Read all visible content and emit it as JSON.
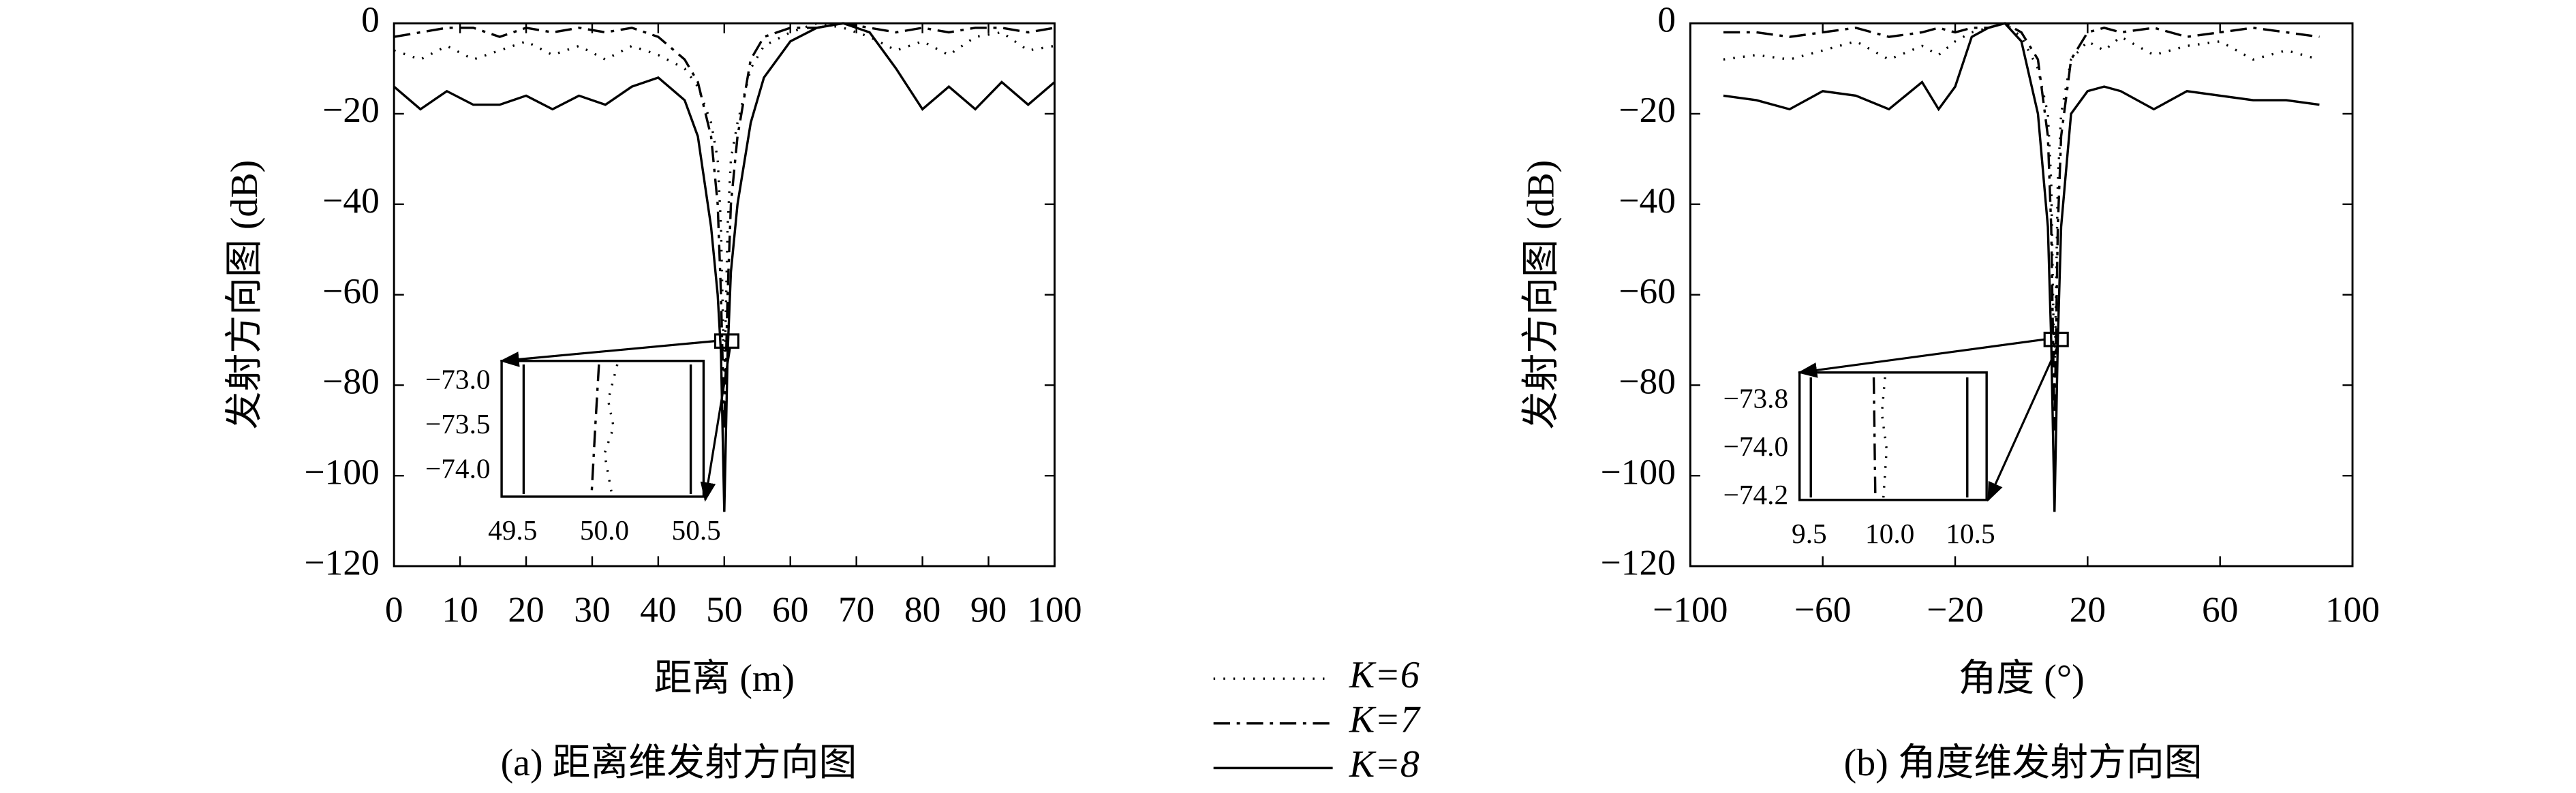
{
  "chart_data": [
    {
      "type": "line",
      "title": "(a) 距离维发射方向图",
      "xlabel": "距离 (m)",
      "ylabel": "发射方向图 (dB)",
      "xlim": [
        0,
        100
      ],
      "ylim": [
        -120,
        0
      ],
      "xticks": [
        0,
        10,
        20,
        30,
        40,
        50,
        60,
        70,
        80,
        90,
        100
      ],
      "yticks": [
        0,
        {
          "value": -20,
          "label": "−20"
        },
        {
          "value": -40,
          "label": "−40"
        },
        {
          "value": -60,
          "label": "−60"
        },
        {
          "value": -80,
          "label": "−80"
        },
        {
          "value": -100,
          "label": "−100"
        },
        {
          "value": -120,
          "label": "−120"
        }
      ],
      "x": [
        0,
        4,
        8,
        12,
        16,
        20,
        24,
        28,
        32,
        36,
        40,
        44,
        46,
        48,
        49,
        49.5,
        50,
        50.5,
        51,
        52,
        54,
        56,
        60,
        64,
        68,
        72,
        76,
        80,
        84,
        88,
        92,
        96,
        100
      ],
      "series": [
        {
          "name": "K=6",
          "color": "#000000",
          "style": "dotted",
          "values": [
            -6,
            -8,
            -5,
            -8,
            -6,
            -4,
            -7,
            -5,
            -8,
            -5,
            -7,
            -10,
            -14,
            -22,
            -30,
            -45,
            -80,
            -45,
            -30,
            -22,
            -10,
            -5,
            -2,
            0,
            -1,
            -3,
            -6,
            -4,
            -7,
            -3,
            -2,
            -6,
            -5
          ]
        },
        {
          "name": "K=7",
          "color": "#000000",
          "style": "dashdot",
          "values": [
            -3,
            -2,
            -1,
            -1,
            -3,
            -1,
            -2,
            -1,
            -2,
            -1,
            -3,
            -8,
            -13,
            -25,
            -40,
            -60,
            -90,
            -60,
            -40,
            -25,
            -8,
            -3,
            -1,
            -1,
            0,
            -1,
            -2,
            -1,
            -2,
            -1,
            -1,
            -2,
            -1
          ]
        },
        {
          "name": "K=8",
          "color": "#000000",
          "style": "solid",
          "values": [
            -14,
            -19,
            -15,
            -18,
            -18,
            -16,
            -19,
            -16,
            -18,
            -14,
            -12,
            -17,
            -25,
            -45,
            -60,
            -73,
            -108,
            -73,
            -55,
            -40,
            -22,
            -12,
            -4,
            -1,
            0,
            -2,
            -10,
            -19,
            -14,
            -19,
            -13,
            -18,
            -13
          ]
        }
      ],
      "inset": {
        "xlim": [
          49.44,
          50.54
        ],
        "ylim": [
          -74.28,
          -72.76
        ],
        "xticks": [
          49.5,
          {
            "value": 50,
            "label": "50.0"
          },
          50.5
        ],
        "yticks": [
          {
            "value": -73,
            "label": "−73.0"
          },
          {
            "value": -73.5,
            "label": "−73.5"
          },
          {
            "value": -74,
            "label": "−74.0"
          }
        ],
        "series": [
          {
            "pieces": [
              {
                "x": [
                  50.07,
                  50.02,
                  50.05,
                  50.0,
                  50.04
                ],
                "values": [
                  -72.8,
                  -73.2,
                  -73.5,
                  -73.8,
                  -74.25
                ]
              }
            ]
          },
          {
            "pieces": [
              {
                "x": [
                  49.97,
                  49.95,
                  49.93
                ],
                "values": [
                  -72.8,
                  -73.5,
                  -74.25
                ]
              }
            ]
          },
          {
            "pieces": [
              {
                "x": [
                  49.56,
                  49.56
                ],
                "values": [
                  -72.8,
                  -74.25
                ]
              },
              {
                "x": [
                  50.47,
                  50.47
                ],
                "values": [
                  -72.8,
                  -74.25
                ]
              }
            ]
          }
        ]
      }
    },
    {
      "type": "line",
      "title": "(b) 角度维发射方向图",
      "xlabel": "角度 (°)",
      "ylabel": "发射方向图 (dB)",
      "xlim": [
        -100,
        100
      ],
      "ylim": [
        -120,
        0
      ],
      "xticks": [
        {
          "value": -100,
          "label": "−100"
        },
        {
          "value": -60,
          "label": "−60"
        },
        {
          "value": -20,
          "label": "−20"
        },
        20,
        60,
        100
      ],
      "yticks": [
        0,
        {
          "value": -20,
          "label": "−20"
        },
        {
          "value": -40,
          "label": "−40"
        },
        {
          "value": -60,
          "label": "−60"
        },
        {
          "value": -80,
          "label": "−80"
        },
        {
          "value": -100,
          "label": "−100"
        },
        {
          "value": -120,
          "label": "−120"
        }
      ],
      "x": [
        -90,
        -80,
        -70,
        -60,
        -50,
        -40,
        -30,
        -25,
        -20,
        -15,
        -10,
        -5,
        0,
        5,
        8,
        9,
        10,
        11,
        12,
        15,
        20,
        25,
        30,
        40,
        50,
        60,
        70,
        80,
        90
      ],
      "series": [
        {
          "name": "K=6",
          "color": "#000000",
          "style": "dotted",
          "values": [
            -8,
            -7,
            -8,
            -6,
            -4,
            -8,
            -5,
            -7,
            -4,
            -2,
            -1,
            0,
            -3,
            -10,
            -20,
            -35,
            -80,
            -35,
            -20,
            -8,
            -4,
            -6,
            -3,
            -7,
            -5,
            -4,
            -8,
            -6,
            -8
          ]
        },
        {
          "name": "K=7",
          "color": "#000000",
          "style": "dashdot",
          "values": [
            -2,
            -2,
            -3,
            -2,
            -1,
            -3,
            -2,
            -1,
            -2,
            -1,
            -1,
            0,
            -2,
            -8,
            -25,
            -45,
            -90,
            -45,
            -25,
            -8,
            -2,
            -1,
            -2,
            -1,
            -3,
            -2,
            -1,
            -2,
            -3
          ]
        },
        {
          "name": "K=8",
          "color": "#000000",
          "style": "solid",
          "values": [
            -16,
            -17,
            -19,
            -15,
            -16,
            -19,
            -13,
            -19,
            -14,
            -3,
            -1,
            0,
            -4,
            -20,
            -45,
            -70,
            -108,
            -70,
            -45,
            -20,
            -15,
            -14,
            -15,
            -19,
            -15,
            -16,
            -17,
            -17,
            -18
          ]
        }
      ],
      "inset": {
        "xlim": [
          9.44,
          10.6
        ],
        "ylim": [
          -74.21,
          -73.68
        ],
        "xticks": [
          9.5,
          {
            "value": 10,
            "label": "10.0"
          },
          10.5
        ],
        "yticks": [
          {
            "value": -73.8,
            "label": "−73.8"
          },
          {
            "value": -74,
            "label": "−74.0"
          },
          {
            "value": -74.2,
            "label": "−74.2"
          }
        ],
        "series": [
          {
            "pieces": [
              {
                "x": [
                  9.97,
                  9.95,
                  9.98,
                  9.96
                ],
                "values": [
                  -73.7,
                  -73.85,
                  -74.0,
                  -74.2
                ]
              }
            ]
          },
          {
            "pieces": [
              {
                "x": [
                  9.9,
                  9.91
                ],
                "values": [
                  -73.7,
                  -74.2
                ]
              }
            ]
          },
          {
            "pieces": [
              {
                "x": [
                  9.51,
                  9.51
                ],
                "values": [
                  -73.7,
                  -74.2
                ]
              },
              {
                "x": [
                  10.48,
                  10.48
                ],
                "values": [
                  -73.7,
                  -74.2
                ]
              }
            ]
          }
        ]
      }
    }
  ]
}
